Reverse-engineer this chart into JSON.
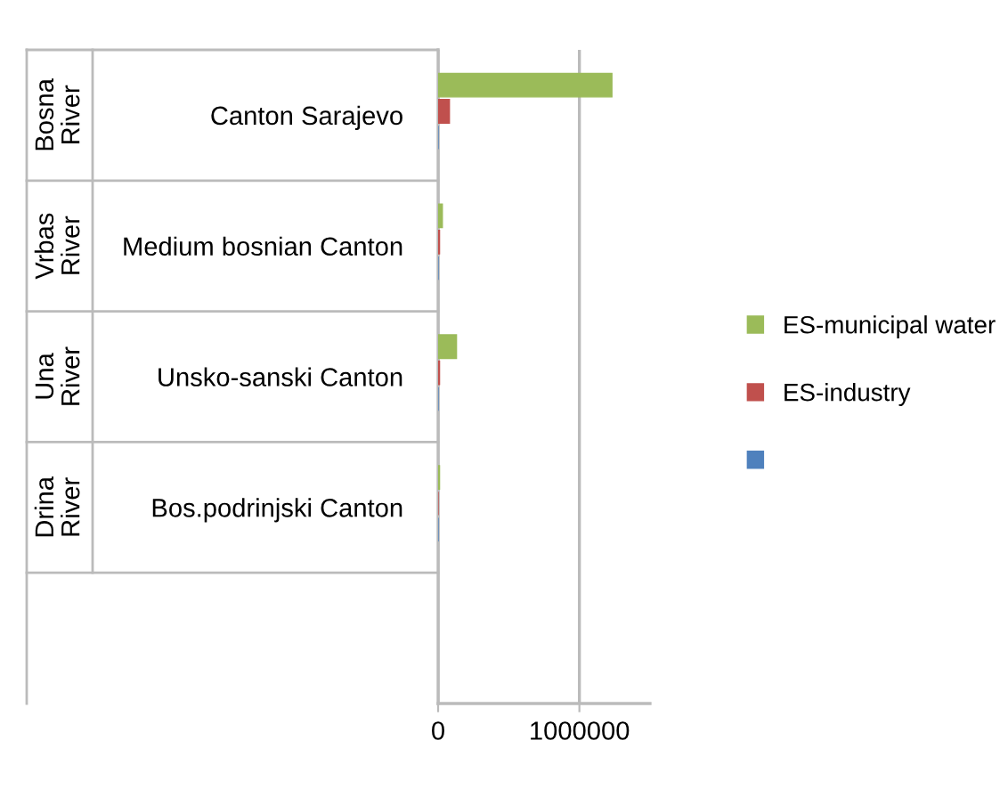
{
  "chart_data": {
    "type": "bar",
    "orientation": "horizontal",
    "categories": [
      "Canton Sarajevo",
      "Medium bosnian Canton",
      "Unsko-sanski Canton",
      "Bos.podrinjski Canton",
      null
    ],
    "series": [
      {
        "name": "ES-municipal water",
        "color": "#9bbb59",
        "values": [
          1230000,
          30000,
          130000,
          10000,
          null
        ]
      },
      {
        "name": "ES-industry",
        "color": "#c0504d",
        "values": [
          80000,
          10000,
          10000,
          0,
          null
        ]
      },
      {
        "color": "#4f81bd",
        "values": [
          0,
          0,
          0,
          0,
          null
        ]
      }
    ],
    "annotations": [
      "Bosna River",
      "Vrbas River",
      "Una River",
      "Drina River"
    ],
    "xlim": [
      0,
      1500000
    ],
    "xticks": [
      0,
      1000000
    ],
    "grid": "x",
    "legend": "right"
  }
}
